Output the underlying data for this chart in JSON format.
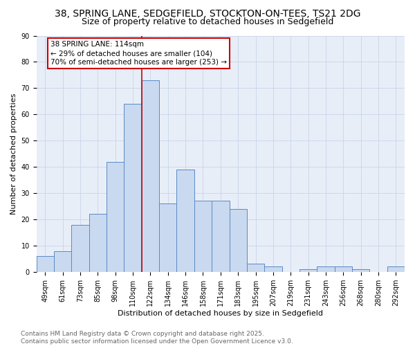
{
  "title_line1": "38, SPRING LANE, SEDGEFIELD, STOCKTON-ON-TEES, TS21 2DG",
  "title_line2": "Size of property relative to detached houses in Sedgefield",
  "xlabel": "Distribution of detached houses by size in Sedgefield",
  "ylabel": "Number of detached properties",
  "categories": [
    "49sqm",
    "61sqm",
    "73sqm",
    "85sqm",
    "98sqm",
    "110sqm",
    "122sqm",
    "134sqm",
    "146sqm",
    "158sqm",
    "171sqm",
    "183sqm",
    "195sqm",
    "207sqm",
    "219sqm",
    "231sqm",
    "243sqm",
    "256sqm",
    "268sqm",
    "280sqm",
    "292sqm"
  ],
  "values": [
    6,
    8,
    18,
    22,
    42,
    64,
    73,
    26,
    39,
    27,
    27,
    24,
    3,
    2,
    0,
    1,
    2,
    2,
    1,
    0,
    2
  ],
  "bar_fill": "#c9d9ef",
  "bar_edge": "#5a8ac6",
  "vline_x": 5.5,
  "vline_color": "#cc0000",
  "annotation_text": "38 SPRING LANE: 114sqm\n← 29% of detached houses are smaller (104)\n70% of semi-detached houses are larger (253) →",
  "annotation_box_color": "#cc0000",
  "annotation_text_color": "#000000",
  "ylim": [
    0,
    90
  ],
  "yticks": [
    0,
    10,
    20,
    30,
    40,
    50,
    60,
    70,
    80,
    90
  ],
  "grid_color": "#c8d4e8",
  "background_color": "#e8eef8",
  "footer_text": "Contains HM Land Registry data © Crown copyright and database right 2025.\nContains public sector information licensed under the Open Government Licence v3.0.",
  "title_fontsize": 10,
  "subtitle_fontsize": 9,
  "axis_label_fontsize": 8,
  "tick_fontsize": 7,
  "annotation_fontsize": 7.5,
  "footer_fontsize": 6.5
}
